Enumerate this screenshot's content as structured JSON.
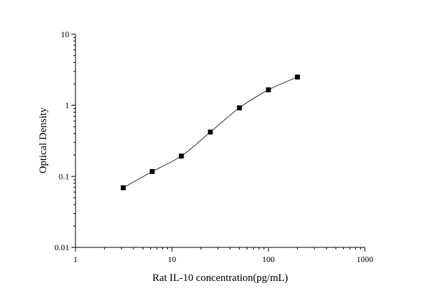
{
  "chart_data": {
    "type": "scatter",
    "title": "",
    "xlabel": "Rat IL-10 concentration(pg/mL)",
    "ylabel": "Optical Density",
    "x_scale": "log",
    "y_scale": "log",
    "xlim": [
      1,
      1000
    ],
    "ylim": [
      0.01,
      10
    ],
    "x_ticks": [
      {
        "value": 1,
        "label": "1"
      },
      {
        "value": 10,
        "label": "10"
      },
      {
        "value": 100,
        "label": "100"
      },
      {
        "value": 1000,
        "label": "1000"
      }
    ],
    "y_ticks": [
      {
        "value": 0.01,
        "label": "0.01"
      },
      {
        "value": 0.1,
        "label": "0.1"
      },
      {
        "value": 1,
        "label": "1"
      },
      {
        "value": 10,
        "label": "10"
      }
    ],
    "grid": false,
    "legend": "none",
    "series": [
      {
        "x": [
          3.125,
          6.25,
          12.5,
          25,
          50,
          100,
          200
        ],
        "y": [
          0.069,
          0.117,
          0.193,
          0.42,
          0.92,
          1.65,
          2.5
        ],
        "marker": "square",
        "color": "#000000",
        "fit_line": "4-parameter logistic curve"
      }
    ]
  }
}
